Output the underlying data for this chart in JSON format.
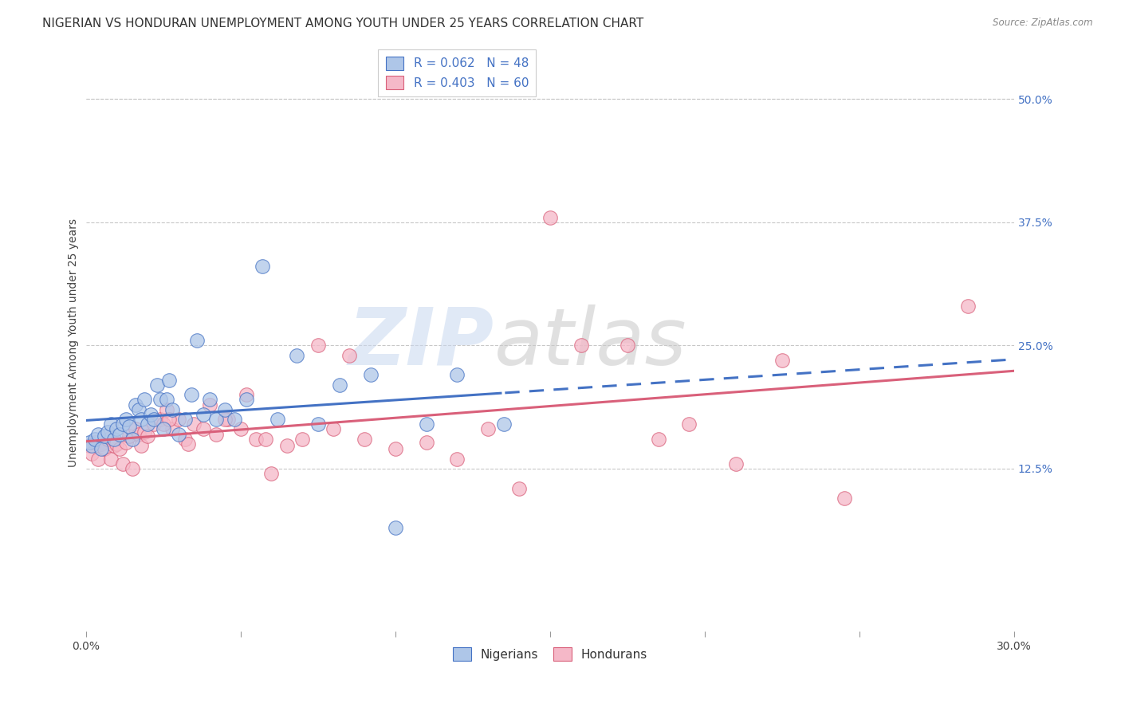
{
  "title": "NIGERIAN VS HONDURAN UNEMPLOYMENT AMONG YOUTH UNDER 25 YEARS CORRELATION CHART",
  "source": "Source: ZipAtlas.com",
  "ylabel": "Unemployment Among Youth under 25 years",
  "xlim": [
    0.0,
    0.3
  ],
  "ylim": [
    -0.04,
    0.545
  ],
  "ytick_positions": [
    0.125,
    0.25,
    0.375,
    0.5
  ],
  "ytick_labels": [
    "12.5%",
    "25.0%",
    "37.5%",
    "50.0%"
  ],
  "nigeria_R": 0.062,
  "nigeria_N": 48,
  "honduras_R": 0.403,
  "honduras_N": 60,
  "nigeria_color": "#aec6e8",
  "honduras_color": "#f5b8c8",
  "nigeria_line_color": "#4472c4",
  "honduras_line_color": "#d9607a",
  "background_color": "#ffffff",
  "grid_color": "#c8c8c8",
  "nigeria_scatter_x": [
    0.001,
    0.002,
    0.003,
    0.004,
    0.005,
    0.006,
    0.007,
    0.008,
    0.009,
    0.01,
    0.011,
    0.012,
    0.013,
    0.014,
    0.015,
    0.016,
    0.017,
    0.018,
    0.019,
    0.02,
    0.021,
    0.022,
    0.023,
    0.024,
    0.025,
    0.026,
    0.027,
    0.028,
    0.03,
    0.032,
    0.034,
    0.036,
    0.038,
    0.04,
    0.042,
    0.045,
    0.048,
    0.052,
    0.057,
    0.062,
    0.068,
    0.075,
    0.082,
    0.092,
    0.1,
    0.11,
    0.12,
    0.135
  ],
  "nigeria_scatter_y": [
    0.152,
    0.148,
    0.155,
    0.16,
    0.145,
    0.158,
    0.162,
    0.17,
    0.155,
    0.165,
    0.16,
    0.17,
    0.175,
    0.168,
    0.155,
    0.19,
    0.185,
    0.175,
    0.195,
    0.17,
    0.18,
    0.175,
    0.21,
    0.195,
    0.165,
    0.195,
    0.215,
    0.185,
    0.16,
    0.175,
    0.2,
    0.255,
    0.18,
    0.195,
    0.175,
    0.185,
    0.175,
    0.195,
    0.33,
    0.175,
    0.24,
    0.17,
    0.21,
    0.22,
    0.065,
    0.17,
    0.22,
    0.17
  ],
  "honduras_scatter_x": [
    0.001,
    0.002,
    0.003,
    0.004,
    0.005,
    0.006,
    0.007,
    0.008,
    0.009,
    0.01,
    0.011,
    0.012,
    0.013,
    0.014,
    0.015,
    0.016,
    0.017,
    0.018,
    0.019,
    0.02,
    0.022,
    0.024,
    0.026,
    0.028,
    0.03,
    0.032,
    0.035,
    0.038,
    0.042,
    0.046,
    0.05,
    0.055,
    0.06,
    0.065,
    0.07,
    0.08,
    0.09,
    0.1,
    0.11,
    0.12,
    0.13,
    0.14,
    0.15,
    0.16,
    0.175,
    0.185,
    0.195,
    0.21,
    0.225,
    0.245,
    0.025,
    0.027,
    0.033,
    0.04,
    0.045,
    0.052,
    0.058,
    0.075,
    0.085,
    0.285
  ],
  "honduras_scatter_y": [
    0.148,
    0.14,
    0.152,
    0.135,
    0.15,
    0.145,
    0.155,
    0.135,
    0.148,
    0.15,
    0.145,
    0.13,
    0.152,
    0.158,
    0.125,
    0.165,
    0.16,
    0.148,
    0.162,
    0.158,
    0.17,
    0.175,
    0.185,
    0.165,
    0.175,
    0.155,
    0.17,
    0.165,
    0.16,
    0.175,
    0.165,
    0.155,
    0.12,
    0.148,
    0.155,
    0.165,
    0.155,
    0.145,
    0.152,
    0.135,
    0.165,
    0.105,
    0.38,
    0.25,
    0.25,
    0.155,
    0.17,
    0.13,
    0.235,
    0.095,
    0.17,
    0.175,
    0.15,
    0.19,
    0.175,
    0.2,
    0.155,
    0.25,
    0.24,
    0.29
  ],
  "watermark_zip": "ZIP",
  "watermark_atlas": "atlas",
  "legend_labels": [
    "Nigerians",
    "Hondurans"
  ],
  "title_fontsize": 11,
  "axis_label_fontsize": 10,
  "tick_fontsize": 10,
  "legend_fontsize": 11
}
